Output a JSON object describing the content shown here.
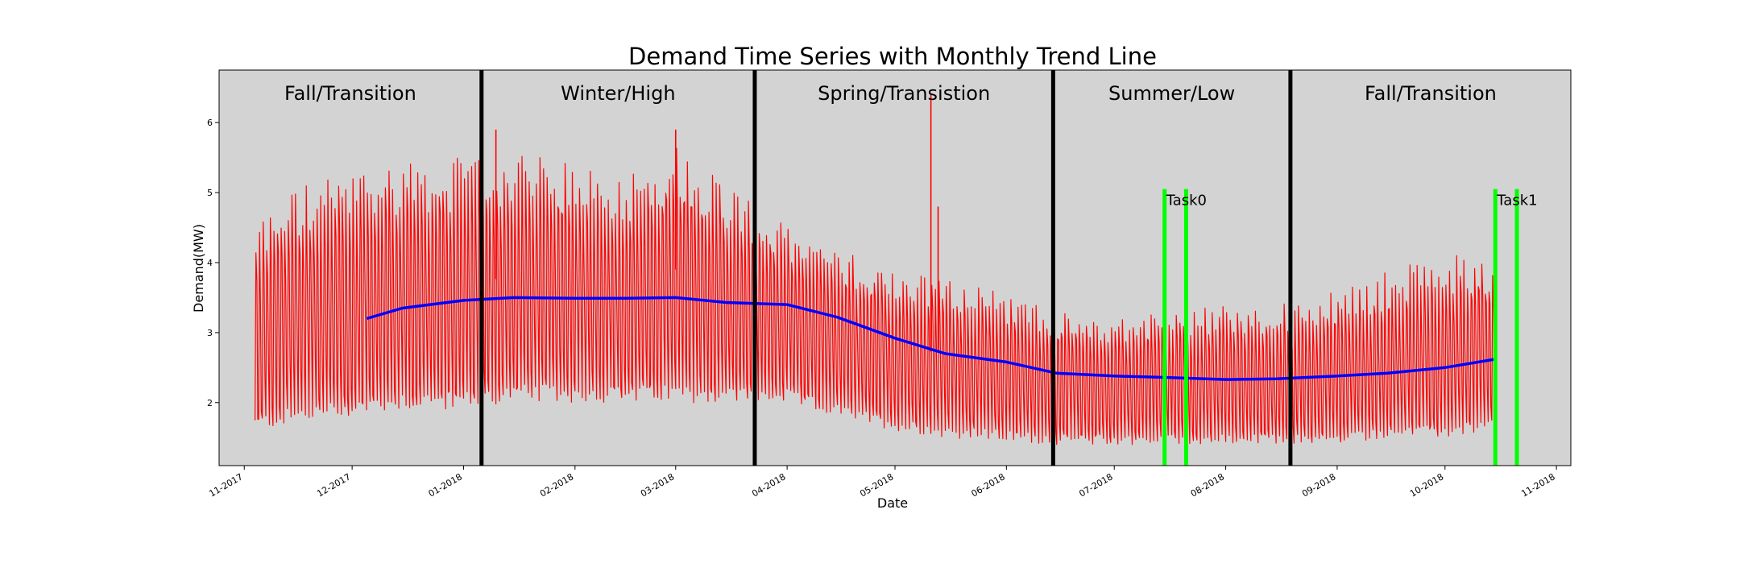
{
  "chart_data": {
    "type": "line",
    "title": "Demand Time Series with Monthly Trend Line",
    "xlabel": "Date",
    "ylabel": "Demand(MW)",
    "x_range": [
      "2017-10-25",
      "2018-11-05"
    ],
    "ylim": [
      1.1,
      6.75
    ],
    "y_ticks": [
      2,
      3,
      4,
      5,
      6
    ],
    "x_ticks": [
      {
        "date": "2017-11-01",
        "label": "11-2017"
      },
      {
        "date": "2017-12-01",
        "label": "12-2017"
      },
      {
        "date": "2018-01-01",
        "label": "01-2018"
      },
      {
        "date": "2018-02-01",
        "label": "02-2018"
      },
      {
        "date": "2018-03-01",
        "label": "03-2018"
      },
      {
        "date": "2018-04-01",
        "label": "04-2018"
      },
      {
        "date": "2018-05-01",
        "label": "05-2018"
      },
      {
        "date": "2018-06-01",
        "label": "06-2018"
      },
      {
        "date": "2018-07-01",
        "label": "07-2018"
      },
      {
        "date": "2018-08-01",
        "label": "08-2018"
      },
      {
        "date": "2018-09-01",
        "label": "09-2018"
      },
      {
        "date": "2018-10-01",
        "label": "10-2018"
      },
      {
        "date": "2018-11-01",
        "label": "11-2018"
      }
    ],
    "background_color": "#d3d3d3",
    "grid": false,
    "season_boundaries": [
      "2018-01-06",
      "2018-03-23",
      "2018-06-14",
      "2018-08-19"
    ],
    "seasons": [
      {
        "label": "Fall/Transition",
        "start": "2017-10-25",
        "end": "2018-01-06"
      },
      {
        "label": "Winter/High",
        "start": "2018-01-06",
        "end": "2018-03-23"
      },
      {
        "label": "Spring/Transistion",
        "start": "2018-03-23",
        "end": "2018-06-14"
      },
      {
        "label": "Summer/Low",
        "start": "2018-06-14",
        "end": "2018-08-19"
      },
      {
        "label": "Fall/Transition",
        "start": "2018-08-19",
        "end": "2018-11-05"
      }
    ],
    "tasks": [
      {
        "label": "Task0",
        "start": "2018-07-15",
        "end": "2018-07-21",
        "line_top": 5.05,
        "color": "#00ff00"
      },
      {
        "label": "Task1",
        "start": "2018-10-15",
        "end": "2018-10-21",
        "line_top": 5.05,
        "color": "#00ff00"
      }
    ],
    "series": [
      {
        "color": "#ff0000",
        "data_start": "2017-11-04",
        "data_end": "2018-10-15",
        "envelope": [
          {
            "date": "2017-11-04",
            "min": 1.6,
            "max": 4.6,
            "mid": 3.1
          },
          {
            "date": "2017-11-15",
            "min": 1.7,
            "max": 5.1,
            "mid": 3.3
          },
          {
            "date": "2017-12-01",
            "min": 1.8,
            "max": 5.3,
            "mid": 3.6
          },
          {
            "date": "2017-12-15",
            "min": 1.9,
            "max": 5.5,
            "mid": 3.7
          },
          {
            "date": "2018-01-01",
            "min": 1.9,
            "max": 5.5,
            "mid": 3.7
          },
          {
            "date": "2018-01-15",
            "min": 2.0,
            "max": 5.6,
            "mid": 3.8
          },
          {
            "date": "2018-02-01",
            "min": 2.0,
            "max": 5.4,
            "mid": 3.7
          },
          {
            "date": "2018-02-15",
            "min": 2.0,
            "max": 5.3,
            "mid": 3.6
          },
          {
            "date": "2018-03-01",
            "min": 2.0,
            "max": 5.7,
            "mid": 3.9
          },
          {
            "date": "2018-03-15",
            "min": 2.0,
            "max": 5.2,
            "mid": 3.6
          },
          {
            "date": "2018-04-01",
            "min": 2.0,
            "max": 4.5,
            "mid": 3.3
          },
          {
            "date": "2018-04-15",
            "min": 1.8,
            "max": 4.2,
            "mid": 3.0
          },
          {
            "date": "2018-05-01",
            "min": 1.6,
            "max": 3.9,
            "mid": 2.8
          },
          {
            "date": "2018-05-15",
            "min": 1.5,
            "max": 3.8,
            "mid": 2.7
          },
          {
            "date": "2018-06-01",
            "min": 1.45,
            "max": 3.6,
            "mid": 2.5
          },
          {
            "date": "2018-06-15",
            "min": 1.4,
            "max": 3.3,
            "mid": 2.4
          },
          {
            "date": "2018-07-01",
            "min": 1.4,
            "max": 3.2,
            "mid": 2.4
          },
          {
            "date": "2018-07-15",
            "min": 1.4,
            "max": 3.3,
            "mid": 2.4
          },
          {
            "date": "2018-08-01",
            "min": 1.4,
            "max": 3.4,
            "mid": 2.4
          },
          {
            "date": "2018-08-15",
            "min": 1.4,
            "max": 3.4,
            "mid": 2.4
          },
          {
            "date": "2018-09-01",
            "min": 1.4,
            "max": 3.6,
            "mid": 2.5
          },
          {
            "date": "2018-09-15",
            "min": 1.5,
            "max": 3.9,
            "mid": 2.6
          },
          {
            "date": "2018-10-01",
            "min": 1.5,
            "max": 4.1,
            "mid": 2.7
          },
          {
            "date": "2018-10-15",
            "min": 1.6,
            "max": 4.2,
            "mid": 2.8
          }
        ],
        "spikes": [
          {
            "date": "2018-01-10",
            "value": 5.9
          },
          {
            "date": "2018-03-01",
            "value": 5.9
          },
          {
            "date": "2018-05-11",
            "value": 6.4
          },
          {
            "date": "2018-05-13",
            "value": 4.8
          }
        ]
      },
      {
        "color": "#0000ff",
        "x": [
          "2017-12-05",
          "2017-12-15",
          "2018-01-01",
          "2018-01-15",
          "2018-02-01",
          "2018-02-15",
          "2018-03-01",
          "2018-03-15",
          "2018-04-01",
          "2018-04-15",
          "2018-05-01",
          "2018-05-15",
          "2018-06-01",
          "2018-06-15",
          "2018-07-01",
          "2018-07-15",
          "2018-08-01",
          "2018-08-15",
          "2018-09-01",
          "2018-09-15",
          "2018-10-01",
          "2018-10-15"
        ],
        "y": [
          3.2,
          3.35,
          3.46,
          3.5,
          3.49,
          3.49,
          3.5,
          3.43,
          3.4,
          3.22,
          2.92,
          2.7,
          2.58,
          2.42,
          2.38,
          2.36,
          2.33,
          2.34,
          2.38,
          2.42,
          2.5,
          2.62
        ]
      }
    ]
  }
}
